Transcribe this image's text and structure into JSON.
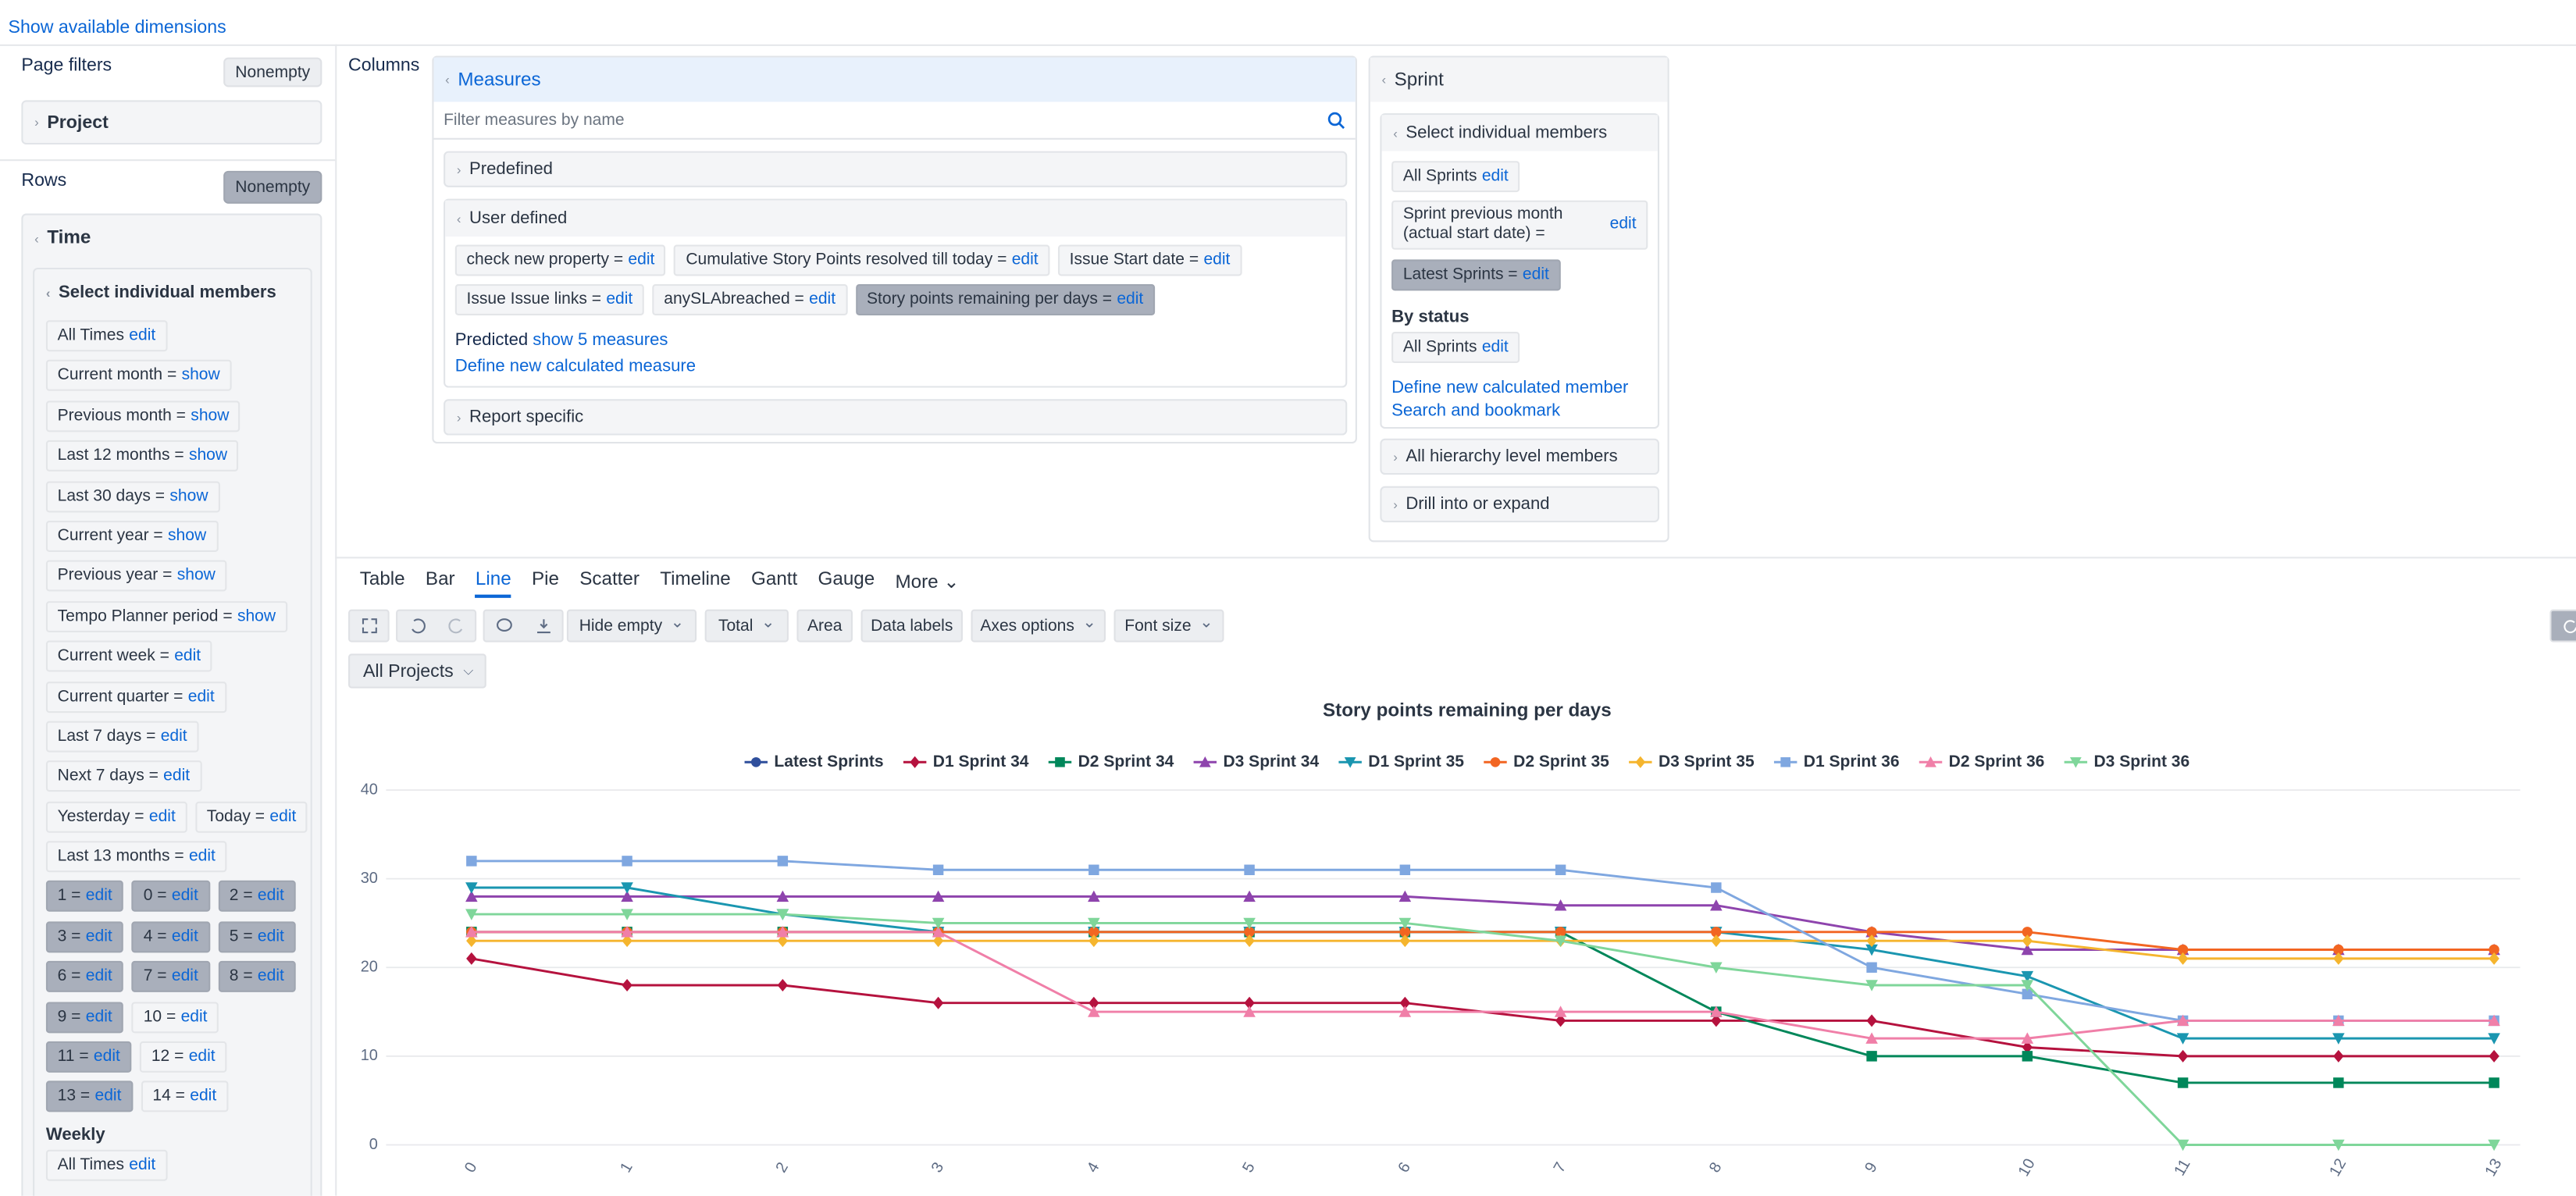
{
  "ui": {
    "top_link": "Show available dimensions",
    "page_filters": {
      "title": "Page filters",
      "button": "Nonempty",
      "dimension": "Project"
    },
    "rows": {
      "title": "Rows",
      "button": "Nonempty",
      "dimension": "Time",
      "section": "Select individual members",
      "members": [
        [
          {
            "label": "All Times",
            "action": "edit",
            "selected": false
          }
        ],
        [
          {
            "label": "Current month =",
            "action": "show",
            "selected": false
          }
        ],
        [
          {
            "label": "Previous month =",
            "action": "show",
            "selected": false
          }
        ],
        [
          {
            "label": "Last 12 months =",
            "action": "show",
            "selected": false
          }
        ],
        [
          {
            "label": "Last 30 days =",
            "action": "show",
            "selected": false
          }
        ],
        [
          {
            "label": "Current year =",
            "action": "show",
            "selected": false
          }
        ],
        [
          {
            "label": "Previous year =",
            "action": "show",
            "selected": false
          }
        ],
        [
          {
            "label": "Tempo Planner period =",
            "action": "show",
            "selected": false
          }
        ],
        [
          {
            "label": "Current week =",
            "action": "edit",
            "selected": false
          }
        ],
        [
          {
            "label": "Current quarter =",
            "action": "edit",
            "selected": false
          }
        ],
        [
          {
            "label": "Last 7 days =",
            "action": "edit",
            "selected": false
          }
        ],
        [
          {
            "label": "Next 7 days =",
            "action": "edit",
            "selected": false
          }
        ],
        [
          {
            "label": "Yesterday =",
            "action": "edit",
            "selected": false
          },
          {
            "label": "Today =",
            "action": "edit",
            "selected": false
          }
        ],
        [
          {
            "label": "Last 13 months =",
            "action": "edit",
            "selected": false
          }
        ],
        [
          {
            "label": "1 =",
            "action": "edit",
            "selected": true
          },
          {
            "label": "0 =",
            "action": "edit",
            "selected": true
          },
          {
            "label": "2 =",
            "action": "edit",
            "selected": true
          }
        ],
        [
          {
            "label": "3 =",
            "action": "edit",
            "selected": true
          },
          {
            "label": "4 =",
            "action": "edit",
            "selected": true
          },
          {
            "label": "5 =",
            "action": "edit",
            "selected": true
          }
        ],
        [
          {
            "label": "6 =",
            "action": "edit",
            "selected": true
          },
          {
            "label": "7 =",
            "action": "edit",
            "selected": true
          },
          {
            "label": "8 =",
            "action": "edit",
            "selected": true
          }
        ],
        [
          {
            "label": "9 =",
            "action": "edit",
            "selected": true
          },
          {
            "label": "10 =",
            "action": "edit",
            "selected": false
          }
        ],
        [
          {
            "label": "11 =",
            "action": "edit",
            "selected": true
          },
          {
            "label": "12 =",
            "action": "edit",
            "selected": false
          }
        ],
        [
          {
            "label": "13 =",
            "action": "edit",
            "selected": true
          },
          {
            "label": "14 =",
            "action": "edit",
            "selected": false
          }
        ]
      ],
      "weekly_title": "Weekly",
      "weekly_members": [
        [
          {
            "label": "All Times",
            "action": "edit",
            "selected": false
          }
        ]
      ]
    },
    "columns": {
      "title": "Columns",
      "measures": {
        "title": "Measures",
        "filter_placeholder": "Filter measures by name",
        "predefined": "Predefined",
        "user_defined": "User defined",
        "items": [
          [
            {
              "label": "check new property =",
              "action": "edit",
              "selected": false
            },
            {
              "label": "Cumulative Story Points resolved till today =",
              "action": "edit",
              "selected": false
            },
            {
              "label": "Issue Start date =",
              "action": "edit",
              "selected": false
            }
          ],
          [
            {
              "label": "Issue Issue links =",
              "action": "edit",
              "selected": false
            },
            {
              "label": "anySLAbreached =",
              "action": "edit",
              "selected": false
            },
            {
              "label": "Story points remaining per days =",
              "action": "edit",
              "selected": true
            }
          ]
        ],
        "predicted": "Predicted",
        "predicted_action": "show 5 measures",
        "define": "Define new calculated measure",
        "report_specific": "Report specific"
      },
      "sprint": {
        "title": "Sprint",
        "section": "Select individual members",
        "items": [
          [
            {
              "label": "All Sprints",
              "action": "edit",
              "selected": false
            }
          ],
          [
            {
              "label": "Sprint previous month (actual start date) =",
              "action": "edit",
              "selected": false
            }
          ],
          [
            {
              "label": "Latest Sprints =",
              "action": "edit",
              "selected": true
            }
          ]
        ],
        "by_status": "By status",
        "status_items": [
          [
            {
              "label": "All Sprints",
              "action": "edit",
              "selected": false
            }
          ]
        ],
        "define": "Define new calculated member",
        "search": "Search and bookmark",
        "all_levels": "All hierarchy level members",
        "drill": "Drill into or expand"
      }
    },
    "tabs": {
      "items": [
        "Table",
        "Bar",
        "Line",
        "Pie",
        "Scatter",
        "Timeline",
        "Gantt",
        "Gauge",
        "More"
      ],
      "active": 2
    },
    "toolbar": [
      {
        "label": "Hide empty",
        "dropdown": true
      },
      {
        "label": "Total",
        "dropdown": true
      },
      {
        "label": "Area",
        "dropdown": false
      },
      {
        "label": "Data labels",
        "dropdown": false
      },
      {
        "label": "Axes options",
        "dropdown": true
      },
      {
        "label": "Font size",
        "dropdown": true
      }
    ],
    "project_select": "All Projects"
  },
  "chart_data": {
    "type": "line",
    "title": "Story points remaining per days",
    "categories": [
      "0",
      "1",
      "2",
      "3",
      "4",
      "5",
      "6",
      "7",
      "8",
      "9",
      "10",
      "11",
      "12",
      "13"
    ],
    "series": [
      {
        "name": "Latest Sprints",
        "color": "#2f4f9c",
        "marker": "circle",
        "values": [
          null,
          null,
          null,
          null,
          null,
          null,
          null,
          null,
          null,
          null,
          null,
          null,
          null,
          null
        ]
      },
      {
        "name": "D1 Sprint 34",
        "color": "#b5123e",
        "marker": "diamond",
        "values": [
          21,
          18,
          18,
          16,
          16,
          16,
          16,
          14,
          14,
          14,
          11,
          10,
          10,
          10
        ]
      },
      {
        "name": "D2 Sprint 34",
        "color": "#00875a",
        "marker": "square",
        "values": [
          24,
          24,
          24,
          24,
          24,
          24,
          24,
          24,
          15,
          10,
          10,
          7,
          7,
          7
        ]
      },
      {
        "name": "D3 Sprint 34",
        "color": "#8e44ad",
        "marker": "triangle",
        "values": [
          28,
          28,
          28,
          28,
          28,
          28,
          28,
          27,
          27,
          24,
          22,
          22,
          22,
          22
        ]
      },
      {
        "name": "D1 Sprint 35",
        "color": "#1a96b0",
        "marker": "triangle-down",
        "values": [
          29,
          29,
          26,
          24,
          24,
          24,
          24,
          24,
          24,
          22,
          19,
          12,
          12,
          12
        ]
      },
      {
        "name": "D2 Sprint 35",
        "color": "#f26522",
        "marker": "circle",
        "values": [
          24,
          24,
          24,
          24,
          24,
          24,
          24,
          24,
          24,
          24,
          24,
          22,
          22,
          22
        ]
      },
      {
        "name": "D3 Sprint 35",
        "color": "#f5b52e",
        "marker": "diamond",
        "values": [
          23,
          23,
          23,
          23,
          23,
          23,
          23,
          23,
          23,
          23,
          23,
          21,
          21,
          21
        ]
      },
      {
        "name": "D1 Sprint 36",
        "color": "#7fa7e0",
        "marker": "square",
        "values": [
          32,
          32,
          32,
          31,
          31,
          31,
          31,
          31,
          29,
          20,
          17,
          14,
          14,
          14
        ]
      },
      {
        "name": "D2 Sprint 36",
        "color": "#f07fa8",
        "marker": "triangle",
        "values": [
          24,
          24,
          24,
          24,
          15,
          15,
          15,
          15,
          15,
          12,
          12,
          14,
          14,
          14
        ]
      },
      {
        "name": "D3 Sprint 36",
        "color": "#7fd69a",
        "marker": "triangle-down",
        "values": [
          26,
          26,
          26,
          25,
          25,
          25,
          25,
          23,
          20,
          18,
          18,
          0,
          0,
          0
        ]
      }
    ],
    "ylim": [
      0,
      40
    ],
    "yticks": [
      0,
      10,
      20,
      30,
      40
    ],
    "grid": true
  }
}
